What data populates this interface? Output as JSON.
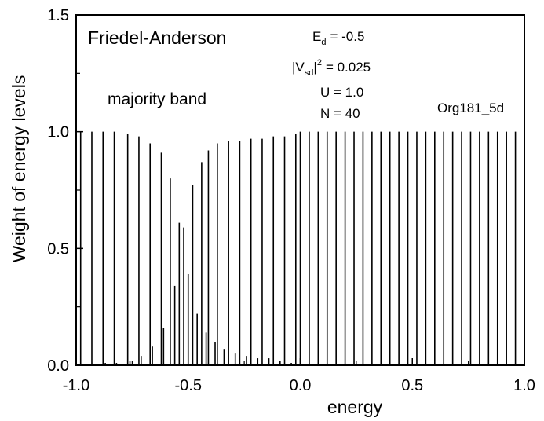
{
  "chart_data": {
    "type": "bar",
    "title": "Friedel-Anderson",
    "subtitle": "majority band",
    "xlabel": "energy",
    "ylabel": "Weight of energy levels",
    "xlim": [
      -1.0,
      1.0
    ],
    "ylim": [
      0.0,
      1.5
    ],
    "x_ticks": [
      "-1.0",
      "-0.5",
      "0.0",
      "0.5",
      "1.0"
    ],
    "y_ticks": [
      "0.0",
      "0.5",
      "1.0",
      "1.5"
    ],
    "grid": false,
    "legend": "none",
    "params": {
      "ed_symbol": "E",
      "ed_sub": "d",
      "ed_value": "= -0.5",
      "v_open": "|V",
      "v_sub": "sd",
      "v_close": "|",
      "v_sup": "2",
      "v_value": "= 0.025",
      "u": "U = 1.0",
      "n": "N = 40"
    },
    "annotation": "Org181_5d",
    "series": [
      {
        "x": [
          -0.98,
          -0.93,
          -0.88,
          -0.87,
          -0.83,
          -0.82,
          -0.77,
          -0.76,
          -0.72,
          -0.71,
          -0.67,
          -0.66,
          -0.62,
          -0.61,
          -0.58,
          -0.56,
          -0.54,
          -0.52,
          -0.5,
          -0.48,
          -0.46,
          -0.44,
          -0.42,
          -0.41,
          -0.38,
          -0.37,
          -0.34,
          -0.32,
          -0.29,
          -0.27,
          -0.24,
          -0.22,
          -0.19,
          -0.17,
          -0.14,
          -0.12,
          -0.09,
          -0.07,
          -0.04,
          -0.02,
          0.0,
          0.04,
          0.08,
          0.12,
          0.16,
          0.2,
          0.24,
          0.28,
          0.32,
          0.36,
          0.4,
          0.44,
          0.48,
          0.52,
          0.56,
          0.6,
          0.64,
          0.68,
          0.72,
          0.76,
          0.8,
          0.84,
          0.88,
          0.92,
          0.96
        ],
        "values": [
          1.0,
          1.0,
          1.0,
          0.01,
          1.0,
          0.01,
          0.99,
          0.02,
          0.98,
          0.04,
          0.95,
          0.08,
          0.91,
          0.16,
          0.8,
          0.34,
          0.61,
          0.59,
          0.39,
          0.77,
          0.22,
          0.87,
          0.14,
          0.92,
          0.1,
          0.95,
          0.07,
          0.96,
          0.05,
          0.96,
          0.04,
          0.97,
          0.03,
          0.97,
          0.03,
          0.98,
          0.02,
          0.98,
          0.01,
          0.99,
          1.0,
          1.0,
          1.0,
          1.0,
          1.0,
          1.0,
          1.0,
          1.0,
          1.0,
          1.0,
          1.0,
          1.0,
          1.0,
          1.0,
          1.0,
          1.0,
          1.0,
          1.0,
          1.0,
          1.0,
          1.0,
          1.0,
          1.0,
          1.0,
          1.0
        ]
      }
    ]
  }
}
